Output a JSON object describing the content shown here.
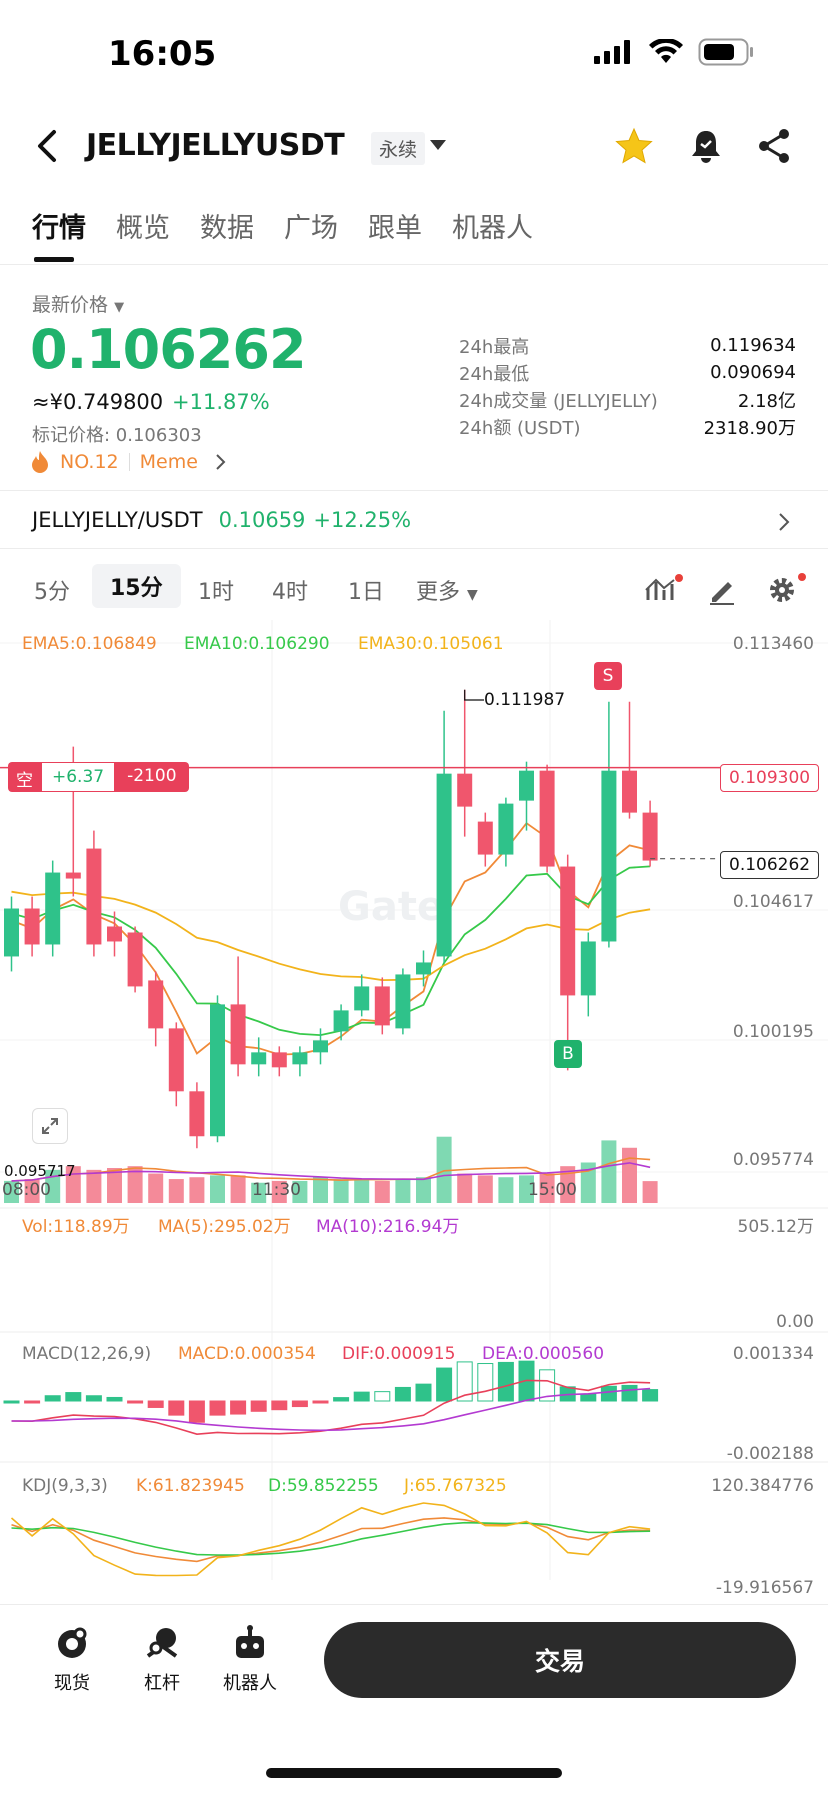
{
  "status": {
    "time": "16:05"
  },
  "header": {
    "title": "JELLYJELLYUSDT",
    "badge": "永续"
  },
  "tabs": [
    "行情",
    "概览",
    "数据",
    "广场",
    "跟单",
    "机器人"
  ],
  "price": {
    "latest_label": "最新价格",
    "last": "0.106262",
    "cny": "≈¥0.749800",
    "change": "+11.87%",
    "mark": "标记价格: 0.106303",
    "rank": "NO.12",
    "tag": "Meme"
  },
  "stats": [
    {
      "k": "24h最高",
      "v": "0.119634"
    },
    {
      "k": "24h最低",
      "v": "0.090694"
    },
    {
      "k": "24h成交量 (JELLYJELLY)",
      "v": "2.18亿"
    },
    {
      "k": "24h额 (USDT)",
      "v": "2318.90万"
    }
  ],
  "spot_pair": {
    "name": "JELLYJELLY/USDT",
    "price": "0.10659",
    "change": "+12.25%"
  },
  "timeframes": [
    "5分",
    "15分",
    "1时",
    "4时",
    "1日",
    "更多"
  ],
  "active_timeframe": "15分",
  "indicators": {
    "ema": {
      "ema5": "EMA5:0.106849",
      "ema10": "EMA10:0.106290",
      "ema30": "EMA30:0.105061"
    },
    "vol": {
      "vol": "Vol:118.89万",
      "ma5": "MA(5):295.02万",
      "ma10": "MA(10):216.94万",
      "max": "505.12万",
      "min": "0.00"
    },
    "macd": {
      "name": "MACD(12,26,9)",
      "macd": "MACD:0.000354",
      "dif": "DIF:0.000915",
      "dea": "DEA:0.000560",
      "max": "0.001334",
      "min": "-0.002188"
    },
    "kdj": {
      "name": "KDJ(9,3,3)",
      "k": "K:61.823945",
      "d": "D:59.852255",
      "j": "J:65.767325",
      "max": "120.384776",
      "min": "-19.916567"
    }
  },
  "chart": {
    "y_labels": [
      "0.113460",
      "0.104617",
      "0.100195",
      "0.095774"
    ],
    "high_marker": "0.111987",
    "low_marker": "0.095717",
    "position_side": "空",
    "position_pnl": "+6.37",
    "position_qty": "-2100",
    "position_price": "0.109300",
    "current_price": "0.106262",
    "x_labels": [
      "08:00",
      "11:30",
      "15:00"
    ],
    "sell_marker": "S",
    "buy_marker": "B",
    "watermark": "Gate"
  },
  "chart_data": {
    "type": "candlestick",
    "ylim": [
      0.095774,
      0.11346
    ],
    "candles": [
      [
        0.103,
        0.1046,
        0.1025,
        0.105,
        "up"
      ],
      [
        0.1046,
        0.1034,
        0.103,
        0.105,
        "down"
      ],
      [
        0.1034,
        0.1058,
        0.103,
        0.1062,
        "up"
      ],
      [
        0.1058,
        0.1056,
        0.105,
        0.11,
        "down"
      ],
      [
        0.1066,
        0.1034,
        0.103,
        0.1072,
        "down"
      ],
      [
        0.104,
        0.1035,
        0.103,
        0.1045,
        "down"
      ],
      [
        0.1038,
        0.102,
        0.1018,
        0.104,
        "down"
      ],
      [
        0.1022,
        0.1006,
        0.1,
        0.1025,
        "down"
      ],
      [
        0.1006,
        0.0985,
        0.098,
        0.1008,
        "down"
      ],
      [
        0.0985,
        0.097,
        0.0966,
        0.0988,
        "down"
      ],
      [
        0.097,
        0.1014,
        0.0968,
        0.1017,
        "up"
      ],
      [
        0.1014,
        0.0994,
        0.099,
        0.103,
        "down"
      ],
      [
        0.0994,
        0.0998,
        0.099,
        0.1003,
        "up"
      ],
      [
        0.0998,
        0.0993,
        0.099,
        0.1,
        "down"
      ],
      [
        0.0994,
        0.0998,
        0.099,
        0.1,
        "up"
      ],
      [
        0.0998,
        0.1002,
        0.0994,
        0.1006,
        "up"
      ],
      [
        0.1005,
        0.1012,
        0.1002,
        0.1014,
        "up"
      ],
      [
        0.1012,
        0.102,
        0.101,
        0.1024,
        "up"
      ],
      [
        0.102,
        0.1007,
        0.1004,
        0.1023,
        "down"
      ],
      [
        0.1006,
        0.1024,
        0.1004,
        0.1026,
        "up"
      ],
      [
        0.1024,
        0.1028,
        0.102,
        0.1032,
        "up"
      ],
      [
        0.103,
        0.1091,
        0.1028,
        0.1112,
        "up"
      ],
      [
        0.1091,
        0.108,
        0.107,
        0.1119,
        "down"
      ],
      [
        0.1075,
        0.1064,
        0.106,
        0.1078,
        "down"
      ],
      [
        0.1064,
        0.1081,
        0.106,
        0.1083,
        "up"
      ],
      [
        0.1082,
        0.1092,
        0.1072,
        0.1095,
        "up"
      ],
      [
        0.1092,
        0.106,
        0.1058,
        0.1094,
        "down"
      ],
      [
        0.106,
        0.1017,
        0.0992,
        0.1064,
        "down"
      ],
      [
        0.1017,
        0.1035,
        0.101,
        0.1038,
        "up"
      ],
      [
        0.1035,
        0.1092,
        0.1033,
        0.1115,
        "up"
      ],
      [
        0.1092,
        0.1078,
        0.1076,
        0.1115,
        "down"
      ],
      [
        0.1078,
        0.1062,
        0.106,
        0.1082,
        "down"
      ]
    ],
    "volume": [
      120,
      130,
      180,
      200,
      180,
      190,
      200,
      160,
      130,
      140,
      150,
      150,
      110,
      120,
      120,
      140,
      130,
      125,
      120,
      130,
      140,
      360,
      160,
      150,
      140,
      150,
      160,
      200,
      220,
      340,
      300,
      118.89
    ],
    "vol_ylim": [
      0,
      505.12
    ]
  }
}
